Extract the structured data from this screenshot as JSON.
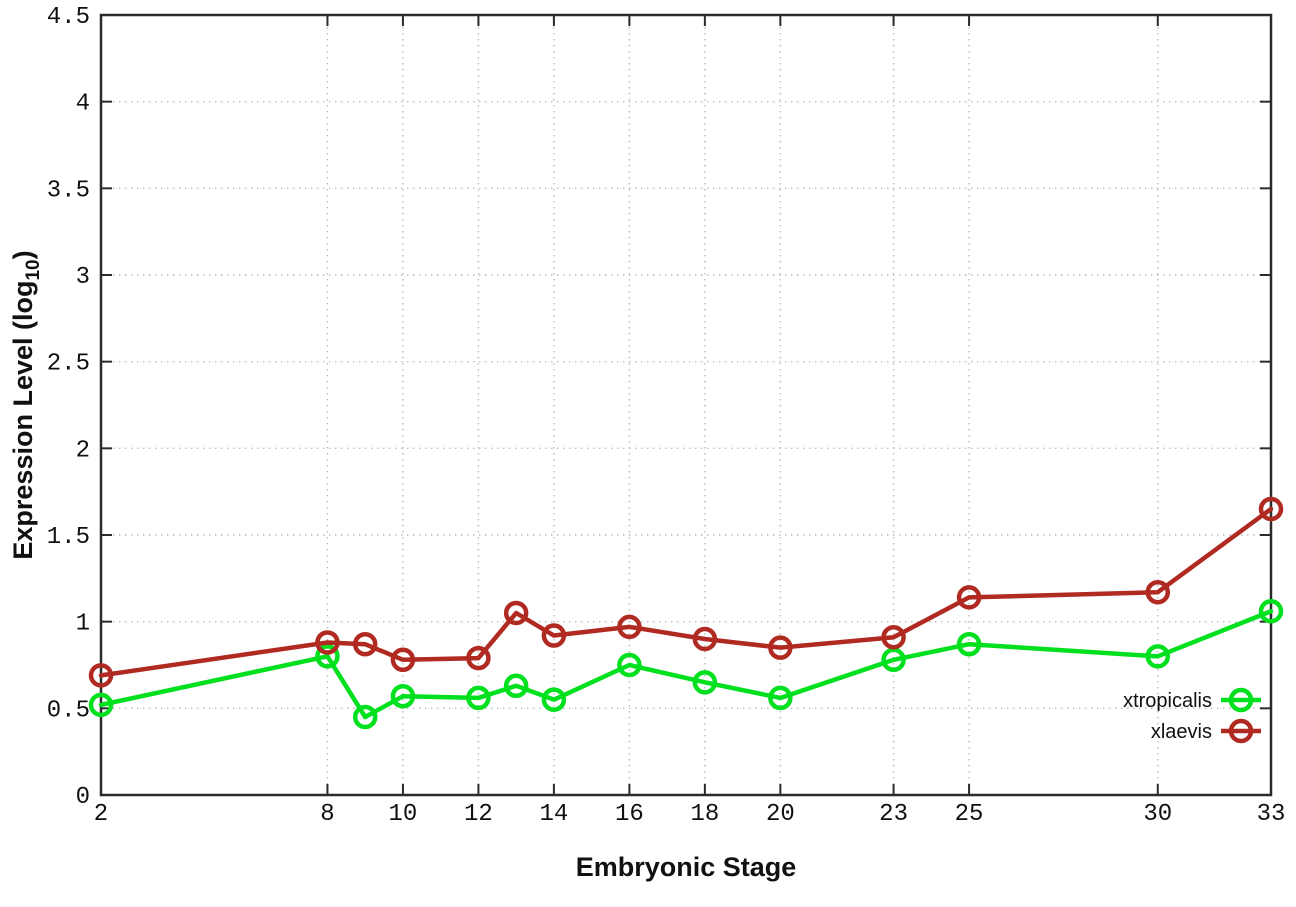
{
  "page": {
    "background": "#ffffff"
  },
  "chart_data": {
    "type": "line",
    "title": "",
    "xlabel": "Embryonic Stage",
    "ylabel": "Expression Level (log10)",
    "ylabel_parts": {
      "main": "Expression Level (log",
      "sub": "10",
      "close": ")"
    },
    "xlim": [
      2,
      33
    ],
    "ylim": [
      0,
      4.5
    ],
    "x_ticks": [
      2,
      8,
      10,
      12,
      14,
      16,
      18,
      20,
      23,
      25,
      30,
      33
    ],
    "y_ticks": [
      0,
      0.5,
      1,
      1.5,
      2,
      2.5,
      3,
      3.5,
      4,
      4.5
    ],
    "grid": true,
    "legend_position": "inside-bottom-right",
    "x": [
      2,
      8,
      9,
      10,
      12,
      13,
      14,
      16,
      18,
      20,
      23,
      25,
      30,
      33
    ],
    "series": [
      {
        "name": "xtropicalis",
        "color": "#00e01e",
        "values": [
          0.52,
          0.8,
          0.45,
          0.57,
          0.56,
          0.63,
          0.55,
          0.75,
          0.65,
          0.56,
          0.78,
          0.87,
          0.8,
          1.06
        ]
      },
      {
        "name": "xlaevis",
        "color": "#b02a22",
        "values": [
          0.69,
          0.88,
          0.87,
          0.78,
          0.79,
          1.05,
          0.92,
          0.97,
          0.9,
          0.85,
          0.91,
          1.14,
          1.17,
          1.65
        ]
      }
    ],
    "colors": {
      "grid": "#bcbcbc",
      "axis": "#2b2b2b",
      "text": "#111111"
    }
  }
}
